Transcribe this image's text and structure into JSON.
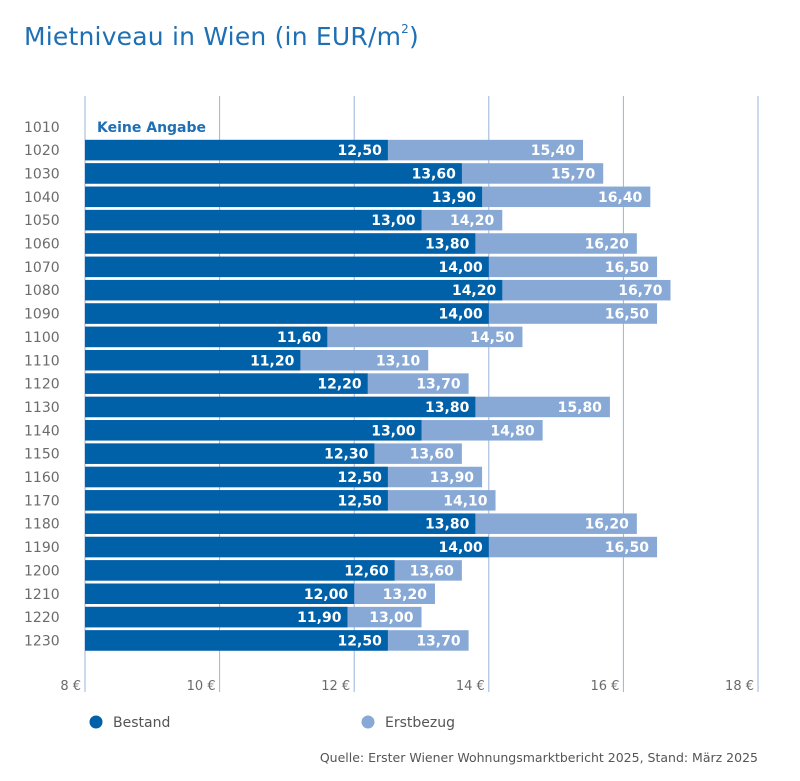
{
  "chart_data": {
    "type": "bar",
    "orientation": "horizontal",
    "title": "Mietniveau in Wien (in EUR/m²)",
    "title_main": "Mietniveau in Wien (in EUR/m",
    "title_sup": "2",
    "title_close": ")",
    "xlabel": "",
    "ylabel": "",
    "xlim": [
      8,
      18
    ],
    "x_ticks": [
      8,
      10,
      12,
      14,
      16,
      18
    ],
    "x_tick_labels": [
      "8 €",
      "10 €",
      "12 €",
      "14 €",
      "16 €",
      "18 €"
    ],
    "grid": true,
    "categories": [
      "1010",
      "1020",
      "1030",
      "1040",
      "1050",
      "1060",
      "1070",
      "1080",
      "1090",
      "1100",
      "1110",
      "1120",
      "1130",
      "1140",
      "1150",
      "1160",
      "1170",
      "1180",
      "1190",
      "1200",
      "1210",
      "1220",
      "1230"
    ],
    "series": [
      {
        "name": "Bestand",
        "color": "#0060a8",
        "values": [
          null,
          12.5,
          13.6,
          13.9,
          13.0,
          13.8,
          14.0,
          14.2,
          14.0,
          11.6,
          11.2,
          12.2,
          13.8,
          13.0,
          12.3,
          12.5,
          12.5,
          13.8,
          14.0,
          12.6,
          12.0,
          11.9,
          12.5
        ],
        "labels": [
          "",
          "12,50",
          "13,60",
          "13,90",
          "13,00",
          "13,80",
          "14,00",
          "14,20",
          "14,00",
          "11,60",
          "11,20",
          "12,20",
          "13,80",
          "13,00",
          "12,30",
          "12,50",
          "12,50",
          "13,80",
          "14,00",
          "12,60",
          "12,00",
          "11,90",
          "12,50"
        ]
      },
      {
        "name": "Erstbezug",
        "color": "#88a9d6",
        "values": [
          null,
          15.4,
          15.7,
          16.4,
          14.2,
          16.2,
          16.5,
          16.7,
          16.5,
          14.5,
          13.1,
          13.7,
          15.8,
          14.8,
          13.6,
          13.9,
          14.1,
          16.2,
          16.5,
          13.6,
          13.2,
          13.0,
          13.7
        ],
        "labels": [
          "",
          "15,40",
          "15,70",
          "16,40",
          "14,20",
          "16,20",
          "16,50",
          "16,70",
          "16,50",
          "14,50",
          "13,10",
          "13,70",
          "15,80",
          "14,80",
          "13,60",
          "13,90",
          "14,10",
          "16,20",
          "16,50",
          "13,60",
          "13,20",
          "13,00",
          "13,70"
        ]
      }
    ],
    "annotations": [
      {
        "category": "1010",
        "text": "Keine Angabe"
      }
    ],
    "legend": {
      "placement": "bottom",
      "entries": [
        {
          "label": "Bestand",
          "color": "#0060a8"
        },
        {
          "label": "Erstbezug",
          "color": "#88a9d6"
        }
      ]
    },
    "source": "Quelle: Erster Wiener Wohnungsmarktbericht 2025, Stand: März 2025"
  },
  "colors": {
    "title": "#1f6fb5",
    "gridline": "#9bb3d8",
    "category_text": "#6b6b6b"
  }
}
